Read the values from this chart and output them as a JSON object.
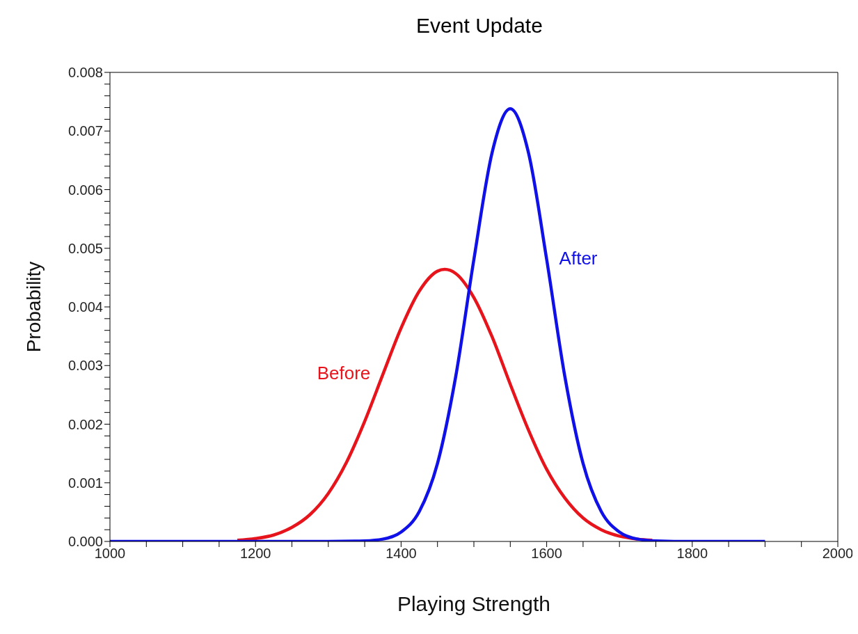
{
  "chart_data": {
    "type": "line",
    "title": "Event Update",
    "xlabel": "Playing Strength",
    "ylabel": "Probability",
    "xlim": [
      1000,
      2000
    ],
    "ylim": [
      0,
      0.008
    ],
    "xticks": [
      1000,
      {
        "value": 1050,
        "label": null
      },
      {
        "value": 1100,
        "label": null
      },
      {
        "value": 1150,
        "label": null
      },
      1200,
      {
        "value": 1250,
        "label": null
      },
      {
        "value": 1300,
        "label": null
      },
      {
        "value": 1350,
        "label": null
      },
      1400,
      {
        "value": 1450,
        "label": null
      },
      {
        "value": 1500,
        "label": null
      },
      {
        "value": 1550,
        "label": null
      },
      1600,
      {
        "value": 1650,
        "label": null
      },
      {
        "value": 1700,
        "label": null
      },
      {
        "value": 1750,
        "label": null
      },
      1800,
      {
        "value": 1850,
        "label": null
      },
      {
        "value": 1900,
        "label": null
      },
      {
        "value": 1950,
        "label": null
      },
      2000
    ],
    "yticks": [
      {
        "value": 0,
        "label": "0.000"
      },
      {
        "value": 0.0002,
        "label": null
      },
      {
        "value": 0.0004,
        "label": null
      },
      {
        "value": 0.0006,
        "label": null
      },
      {
        "value": 0.0008,
        "label": null
      },
      {
        "value": 0.001,
        "label": "0.001"
      },
      {
        "value": 0.0012,
        "label": null
      },
      {
        "value": 0.0014,
        "label": null
      },
      {
        "value": 0.0016,
        "label": null
      },
      {
        "value": 0.0018,
        "label": null
      },
      {
        "value": 0.002,
        "label": "0.002"
      },
      {
        "value": 0.0022,
        "label": null
      },
      {
        "value": 0.0024,
        "label": null
      },
      {
        "value": 0.0026,
        "label": null
      },
      {
        "value": 0.0028,
        "label": null
      },
      {
        "value": 0.003,
        "label": "0.003"
      },
      {
        "value": 0.0032,
        "label": null
      },
      {
        "value": 0.0034,
        "label": null
      },
      {
        "value": 0.0036,
        "label": null
      },
      {
        "value": 0.0038,
        "label": null
      },
      {
        "value": 0.004,
        "label": "0.004"
      },
      {
        "value": 0.0042,
        "label": null
      },
      {
        "value": 0.0044,
        "label": null
      },
      {
        "value": 0.0046,
        "label": null
      },
      {
        "value": 0.0048,
        "label": null
      },
      {
        "value": 0.005,
        "label": "0.005"
      },
      {
        "value": 0.0052,
        "label": null
      },
      {
        "value": 0.0054,
        "label": null
      },
      {
        "value": 0.0056,
        "label": null
      },
      {
        "value": 0.0058,
        "label": null
      },
      {
        "value": 0.006,
        "label": "0.006"
      },
      {
        "value": 0.0062,
        "label": null
      },
      {
        "value": 0.0064,
        "label": null
      },
      {
        "value": 0.0066,
        "label": null
      },
      {
        "value": 0.0068,
        "label": null
      },
      {
        "value": 0.007,
        "label": "0.007"
      },
      {
        "value": 0.0072,
        "label": null
      },
      {
        "value": 0.0074,
        "label": null
      },
      {
        "value": 0.0076,
        "label": null
      },
      {
        "value": 0.0078,
        "label": null
      },
      {
        "value": 0.008,
        "label": "0.008"
      }
    ],
    "grid": false,
    "legend": false,
    "line_style": "solid",
    "series": [
      {
        "name": "Before",
        "color": "#e8141c",
        "x": [
          1175,
          1200,
          1225,
          1250,
          1275,
          1300,
          1325,
          1350,
          1375,
          1400,
          1425,
          1450,
          1460,
          1475,
          1500,
          1525,
          1550,
          1575,
          1600,
          1625,
          1650,
          1675,
          1700,
          1725,
          1745
        ],
        "values": [
          2e-05,
          5e-05,
          0.00011,
          0.00024,
          0.00046,
          0.00082,
          0.00135,
          0.00205,
          0.00285,
          0.00364,
          0.00427,
          0.00461,
          0.00464,
          0.00457,
          0.00416,
          0.00349,
          0.00268,
          0.0019,
          0.00123,
          0.00074,
          0.0004,
          0.0002,
          9e-05,
          4e-05,
          2e-05
        ]
      },
      {
        "name": "After",
        "color": "#1010e8",
        "x": [
          1000,
          1100,
          1200,
          1300,
          1350,
          1375,
          1400,
          1425,
          1450,
          1475,
          1500,
          1525,
          1550,
          1575,
          1600,
          1625,
          1650,
          1675,
          1700,
          1725,
          1750,
          1800,
          1900
        ],
        "values": [
          0,
          0,
          0,
          0,
          1e-05,
          4e-05,
          0.00016,
          0.00051,
          0.00133,
          0.00281,
          0.00481,
          0.00663,
          0.00738,
          0.00663,
          0.00481,
          0.00281,
          0.00133,
          0.00051,
          0.00016,
          4e-05,
          1e-05,
          0,
          0
        ]
      }
    ]
  }
}
